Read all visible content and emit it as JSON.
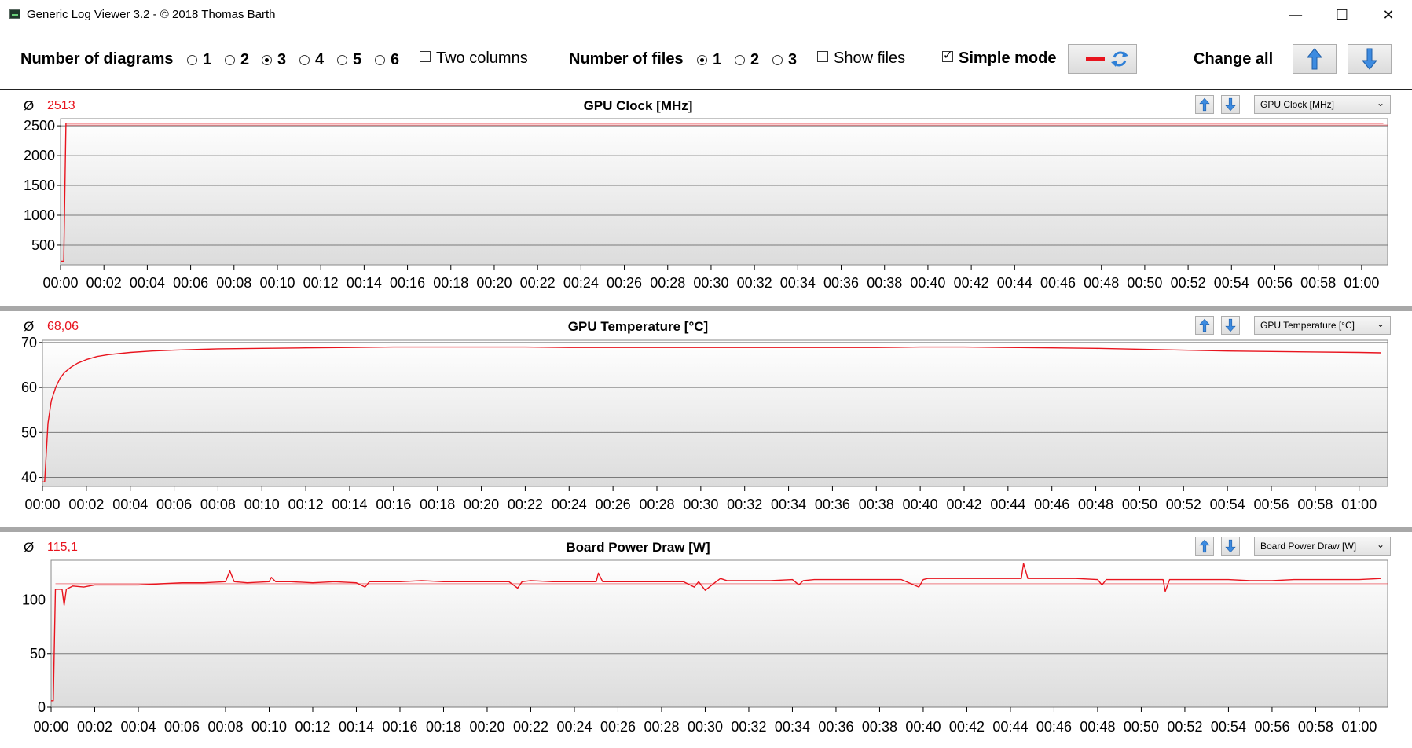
{
  "window": {
    "title": "Generic Log Viewer 3.2 - © 2018 Thomas Barth",
    "minimize": "—",
    "maximize": "☐",
    "close": "✕"
  },
  "toolbar": {
    "diagrams_label": "Number of diagrams",
    "diagram_options": [
      "1",
      "2",
      "3",
      "4",
      "5",
      "6"
    ],
    "diagram_selected": "3",
    "two_columns_label": "Two columns",
    "two_columns_checked": false,
    "files_label": "Number of files",
    "file_options": [
      "1",
      "2",
      "3"
    ],
    "file_selected": "1",
    "show_files_label": "Show files",
    "show_files_checked": false,
    "simple_mode_label": "Simple mode",
    "simple_mode_checked": true,
    "change_all_label": "Change all"
  },
  "colors": {
    "line": "#e8141e",
    "grid": "#7a7a7a",
    "plot_bg_top": "#ffffff",
    "plot_bg_bottom": "#dcdcdc",
    "button_blue": "#3d8be0"
  },
  "x_ticks": [
    "00:00",
    "00:02",
    "00:04",
    "00:06",
    "00:08",
    "00:10",
    "00:12",
    "00:14",
    "00:16",
    "00:18",
    "00:20",
    "00:22",
    "00:24",
    "00:26",
    "00:28",
    "00:30",
    "00:32",
    "00:34",
    "00:36",
    "00:38",
    "00:40",
    "00:42",
    "00:44",
    "00:46",
    "00:48",
    "00:50",
    "00:52",
    "00:54",
    "00:56",
    "00:58",
    "01:00"
  ],
  "panels": [
    {
      "avg_symbol": "Ø",
      "avg_value": "2513",
      "title": "GPU Clock [MHz]",
      "dropdown": "GPU Clock [MHz]",
      "chart_data": {
        "type": "line",
        "title": "GPU Clock [MHz]",
        "x_unit": "minutes",
        "xlim": [
          0,
          61.2
        ],
        "ylim": [
          170,
          2620
        ],
        "yticks": [
          "500",
          "1000",
          "1500",
          "2000",
          "2500"
        ],
        "ytick_values": [
          500,
          1000,
          1500,
          2000,
          2500
        ],
        "series": [
          {
            "x": [
              0,
              0.15,
              0.25,
              5,
              10,
              15,
              20,
              25,
              30,
              35,
              40,
              45,
              50,
              55,
              61
            ],
            "y": [
              230,
              230,
              2545,
              2545,
              2545,
              2545,
              2545,
              2545,
              2545,
              2545,
              2545,
              2545,
              2545,
              2545,
              2545
            ]
          }
        ],
        "average_line": 2513
      }
    },
    {
      "avg_symbol": "Ø",
      "avg_value": "68,06",
      "title": "GPU Temperature [°C]",
      "dropdown": "GPU Temperature [°C]",
      "chart_data": {
        "type": "line",
        "title": "GPU Temperature [°C]",
        "x_unit": "minutes",
        "xlim": [
          0,
          61.3
        ],
        "ylim": [
          38,
          70.5
        ],
        "yticks": [
          "40",
          "50",
          "60",
          "70"
        ],
        "ytick_values": [
          40,
          50,
          60,
          70
        ],
        "series": [
          {
            "x": [
              0,
              0.1,
              0.25,
              0.4,
              0.6,
              0.8,
              1,
              1.3,
              1.6,
              2,
              2.5,
              3,
              4,
              5,
              6,
              8,
              10,
              12,
              14,
              16,
              18,
              20,
              22,
              24,
              26,
              28,
              30,
              32,
              34,
              36,
              38,
              40,
              42,
              44,
              46,
              48,
              50,
              52,
              54,
              56,
              58,
              60,
              61
            ],
            "y": [
              39,
              39,
              52,
              57,
              60,
              62,
              63.3,
              64.5,
              65.4,
              66.2,
              66.9,
              67.3,
              67.8,
              68.1,
              68.3,
              68.6,
              68.7,
              68.8,
              68.9,
              69.0,
              69.0,
              69.0,
              69.0,
              68.9,
              68.9,
              68.9,
              68.9,
              68.9,
              68.9,
              68.9,
              68.9,
              69.0,
              69.0,
              68.9,
              68.8,
              68.7,
              68.5,
              68.3,
              68.1,
              68.0,
              67.9,
              67.8,
              67.7
            ]
          }
        ]
      }
    },
    {
      "avg_symbol": "Ø",
      "avg_value": "115,1",
      "title": "Board Power Draw [W]",
      "dropdown": "Board Power Draw [W]",
      "chart_data": {
        "type": "line",
        "title": "Board Power Draw [W]",
        "x_unit": "minutes",
        "xlim": [
          0,
          61.3
        ],
        "ylim": [
          0,
          137
        ],
        "yticks": [
          "0",
          "50",
          "100"
        ],
        "ytick_values": [
          0,
          50,
          100
        ],
        "series": [
          {
            "x": [
              0,
              0.1,
              0.2,
              0.3,
              0.5,
              0.6,
              0.7,
              0.8,
              1,
              1.5,
              2,
              3,
              4,
              5,
              6,
              7,
              8,
              8.2,
              8.4,
              9,
              10,
              10.1,
              10.3,
              11,
              12,
              13,
              14,
              14.4,
              14.6,
              15,
              16,
              17,
              18,
              19,
              20,
              21,
              21.4,
              21.6,
              22,
              23,
              24,
              25,
              25.1,
              25.3,
              26,
              27,
              28,
              29,
              29.5,
              29.7,
              30,
              30.5,
              30.7,
              31,
              32,
              33,
              34,
              34.3,
              34.5,
              35,
              36,
              37,
              38,
              39,
              39.8,
              40,
              40.2,
              41,
              42,
              43,
              44,
              44.5,
              44.6,
              44.8,
              45,
              46,
              47,
              48,
              48.2,
              48.4,
              49,
              50,
              51,
              51.1,
              51.3,
              52,
              53,
              54,
              55,
              56,
              57,
              58,
              59,
              60,
              61
            ],
            "y": [
              6,
              6,
              110,
              110,
              110,
              95,
              110,
              111,
              113,
              112,
              114,
              114,
              114,
              115,
              116,
              116,
              117,
              127,
              117,
              116,
              117,
              121,
              117,
              117,
              116,
              117,
              116,
              112,
              117,
              117,
              117,
              118,
              117,
              117,
              117,
              117,
              111,
              117,
              118,
              117,
              117,
              117,
              125,
              117,
              117,
              117,
              117,
              117,
              112,
              117,
              109,
              117,
              120,
              118,
              118,
              118,
              119,
              114,
              118,
              119,
              119,
              119,
              119,
              119,
              112,
              119,
              120,
              120,
              120,
              120,
              120,
              120,
              134,
              120,
              120,
              120,
              120,
              119,
              114,
              119,
              119,
              119,
              119,
              108,
              119,
              119,
              119,
              119,
              118,
              118,
              119,
              119,
              119,
              119,
              120
            ]
          }
        ],
        "average_line": 115.1
      }
    }
  ]
}
